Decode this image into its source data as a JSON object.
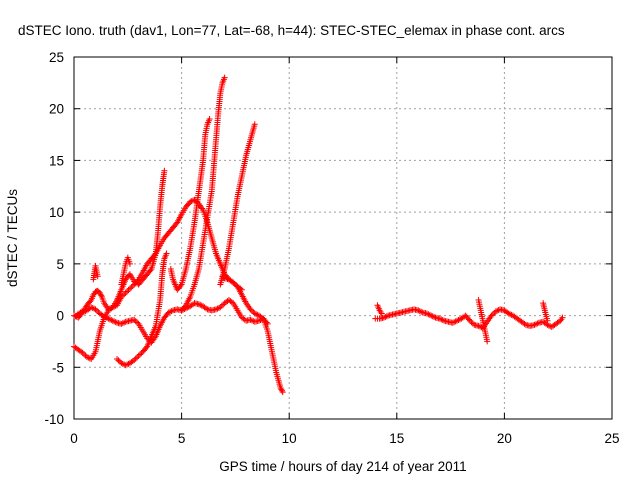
{
  "chart_data": {
    "type": "scatter",
    "title": "dSTEC Iono. truth (dav1, Lon=77, Lat=-68, h=44): STEC-STEC_elemax in phase cont. arcs",
    "xlabel": "GPS time / hours of day 214 of year 2011",
    "ylabel": "dSTEC  / TECUs",
    "xlim": [
      0,
      25
    ],
    "ylim": [
      -10,
      25
    ],
    "x_ticks": [
      0,
      5,
      10,
      15,
      20,
      25
    ],
    "y_ticks": [
      -10,
      -5,
      0,
      5,
      10,
      15,
      20,
      25
    ],
    "x_tick_labels": [
      "0",
      "5",
      "10",
      "15",
      "20",
      "25"
    ],
    "y_tick_labels": [
      "-10",
      "-5",
      "0",
      "5",
      "10",
      "15",
      "20",
      "25"
    ],
    "grid": true,
    "marker": "plus",
    "color": "#ff0000",
    "series": [
      {
        "x": [
          0.0,
          0.2,
          0.4,
          0.6,
          0.8,
          1.0,
          1.2,
          1.4,
          1.6,
          1.8,
          2.0,
          2.2,
          2.4,
          2.6,
          2.8,
          3.0,
          3.2,
          3.4,
          3.6,
          3.8,
          4.0,
          4.2,
          4.4,
          4.6,
          4.8,
          5.0,
          5.2,
          5.4,
          5.6,
          5.8,
          6.0,
          6.2,
          6.4,
          6.6,
          6.8,
          7.0,
          7.2,
          7.4,
          7.6,
          7.8,
          8.0,
          8.2,
          8.4,
          8.6,
          8.8,
          9.0
        ],
        "y": [
          0.0,
          -0.2,
          0.3,
          0.5,
          0.8,
          0.6,
          0.2,
          -0.1,
          -0.3,
          -0.5,
          -0.7,
          -0.8,
          -0.6,
          -0.5,
          -0.4,
          -0.8,
          -1.5,
          -2.2,
          -2.6,
          -2.0,
          -1.0,
          -0.2,
          0.3,
          0.5,
          0.6,
          0.5,
          0.7,
          0.9,
          1.2,
          1.1,
          0.9,
          0.6,
          0.5,
          0.6,
          0.8,
          1.2,
          1.5,
          1.2,
          0.5,
          -0.2,
          -0.5,
          -0.4,
          -0.6,
          -0.5,
          -0.3,
          -0.8
        ]
      },
      {
        "x": [
          0.0,
          0.2,
          0.4,
          0.6,
          0.8,
          1.0,
          1.2,
          1.4,
          1.6,
          1.8,
          2.0,
          2.2,
          2.4,
          2.6,
          2.8,
          3.0,
          3.2,
          3.4,
          3.6,
          3.8,
          4.0,
          4.2,
          4.4,
          4.6,
          4.8,
          5.0,
          5.2,
          5.4,
          5.6,
          5.8,
          6.0,
          6.2,
          6.4,
          6.6,
          6.8,
          7.0,
          7.2,
          7.4,
          7.6,
          7.8,
          8.0,
          8.2,
          8.4,
          8.6,
          8.8,
          9.0,
          9.2,
          9.4,
          9.6,
          9.7
        ],
        "y": [
          -3.0,
          -3.3,
          -3.6,
          -4.0,
          -4.2,
          -3.5,
          -1.5,
          -0.2,
          0.5,
          0.8,
          1.0,
          1.8,
          2.2,
          2.6,
          3.0,
          3.5,
          4.2,
          5.0,
          5.5,
          6.0,
          6.8,
          7.5,
          8.0,
          8.5,
          9.0,
          9.8,
          10.5,
          11.0,
          11.2,
          10.8,
          10.2,
          9.0,
          7.5,
          6.0,
          5.0,
          4.0,
          3.5,
          3.2,
          2.8,
          2.0,
          1.2,
          0.6,
          0.2,
          0.0,
          -0.3,
          -1.5,
          -3.5,
          -5.5,
          -7.0,
          -7.4
        ]
      },
      {
        "x": [
          0.1,
          0.3,
          0.5,
          0.6,
          0.8,
          0.9,
          1.0,
          1.1,
          1.2,
          1.3,
          1.4,
          1.6,
          1.8,
          2.0,
          2.2,
          2.4,
          2.6,
          2.8,
          3.0,
          3.2,
          3.4,
          3.6,
          3.8,
          3.9,
          4.0,
          4.1,
          4.2
        ],
        "y": [
          0.0,
          0.3,
          0.6,
          1.0,
          1.5,
          2.0,
          2.3,
          2.4,
          2.2,
          1.8,
          1.2,
          0.6,
          0.8,
          1.5,
          2.5,
          3.5,
          4.0,
          3.3,
          3.0,
          3.5,
          4.0,
          4.5,
          6.0,
          8.0,
          10.5,
          12.5,
          14.0
        ]
      },
      {
        "x": [
          0.9,
          1.0,
          1.1
        ],
        "y": [
          3.5,
          4.8,
          3.8
        ]
      },
      {
        "x": [
          2.0,
          2.2,
          2.4,
          2.6,
          2.8,
          3.0,
          3.2,
          3.4,
          3.6,
          3.8,
          4.0,
          4.1,
          4.2,
          4.3
        ],
        "y": [
          -4.2,
          -4.6,
          -4.8,
          -4.6,
          -4.3,
          -3.9,
          -3.5,
          -3.0,
          -2.0,
          -1.0,
          1.5,
          4.0,
          5.5,
          6.0
        ]
      },
      {
        "x": [
          2.2,
          2.3,
          2.4,
          2.5,
          2.6
        ],
        "y": [
          3.0,
          4.0,
          5.0,
          5.6,
          5.0
        ]
      },
      {
        "x": [
          4.5,
          4.6,
          4.8,
          5.0,
          5.2,
          5.4,
          5.6,
          5.8,
          6.0,
          6.1,
          6.2,
          6.3
        ],
        "y": [
          4.5,
          3.5,
          2.5,
          3.0,
          4.5,
          6.5,
          9.0,
          12.0,
          15.0,
          17.5,
          18.5,
          19.0
        ]
      },
      {
        "x": [
          5.0,
          5.2,
          5.4,
          5.6,
          5.8,
          6.0,
          6.2,
          6.4,
          6.5,
          6.6,
          6.7,
          6.8,
          6.9,
          7.0
        ],
        "y": [
          0.5,
          1.0,
          1.8,
          3.0,
          4.5,
          7.0,
          9.5,
          12.0,
          14.5,
          17.0,
          19.5,
          21.5,
          22.5,
          23.0
        ]
      },
      {
        "x": [
          6.8,
          7.0,
          7.2,
          7.4,
          7.6,
          7.8,
          8.0,
          8.2,
          8.4
        ],
        "y": [
          3.0,
          4.5,
          6.5,
          9.0,
          11.5,
          13.5,
          15.5,
          17.0,
          18.5
        ]
      },
      {
        "x": [
          6.9,
          7.0,
          7.2,
          7.4,
          7.6,
          7.8
        ],
        "y": [
          3.8,
          3.6,
          3.5,
          3.2,
          2.8,
          2.5
        ]
      },
      {
        "x": [
          14.0,
          14.2,
          14.4,
          14.6,
          14.8,
          15.0,
          15.2,
          15.4,
          15.6,
          15.8,
          16.0,
          16.2,
          16.4,
          16.6,
          16.8,
          17.0,
          17.2,
          17.4,
          17.6,
          17.8,
          18.0,
          18.2,
          18.4,
          18.6,
          18.8,
          19.0,
          19.2,
          19.4,
          19.6,
          19.8,
          20.0,
          20.2,
          20.4,
          20.6,
          20.8,
          21.0,
          21.2,
          21.4,
          21.6,
          21.8,
          22.0,
          22.2,
          22.4,
          22.6,
          22.7
        ],
        "y": [
          -0.3,
          -0.3,
          -0.2,
          0.0,
          0.1,
          0.2,
          0.3,
          0.4,
          0.5,
          0.6,
          0.5,
          0.3,
          0.2,
          0.0,
          -0.2,
          -0.3,
          -0.5,
          -0.6,
          -0.7,
          -0.5,
          -0.3,
          0.0,
          -0.5,
          -0.9,
          -1.0,
          -1.2,
          -0.6,
          0.0,
          0.4,
          0.6,
          0.5,
          0.2,
          0.0,
          -0.3,
          -0.6,
          -0.9,
          -1.0,
          -0.9,
          -0.7,
          -0.6,
          -0.9,
          -1.1,
          -0.8,
          -0.5,
          -0.2
        ]
      },
      {
        "x": [
          14.1,
          14.2,
          14.3
        ],
        "y": [
          1.0,
          0.5,
          0.2
        ]
      },
      {
        "x": [
          18.8,
          18.9,
          19.0,
          19.1,
          19.2
        ],
        "y": [
          1.5,
          0.5,
          -0.5,
          -1.5,
          -2.5
        ]
      },
      {
        "x": [
          21.8,
          21.9,
          22.0
        ],
        "y": [
          1.2,
          0.3,
          -0.5
        ]
      }
    ]
  }
}
